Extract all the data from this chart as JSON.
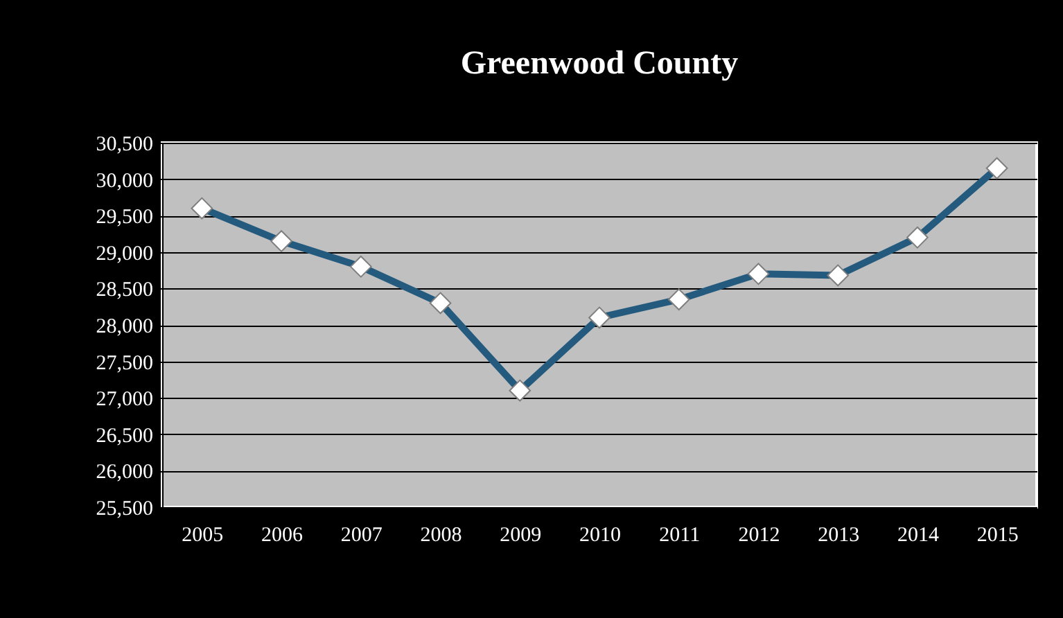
{
  "chart_data": {
    "type": "line",
    "title": "Greenwood County",
    "categories": [
      "2005",
      "2006",
      "2007",
      "2008",
      "2009",
      "2010",
      "2011",
      "2012",
      "2013",
      "2014",
      "2015"
    ],
    "series": [
      {
        "color": "#245a7e",
        "values": [
          29600,
          29150,
          28800,
          28300,
          27100,
          28100,
          28350,
          28700,
          28680,
          29200,
          30150
        ]
      }
    ],
    "ylim": [
      25500,
      30500
    ],
    "yticks": [
      {
        "value": 25500,
        "label": "25,500"
      },
      {
        "value": 26000,
        "label": "26,000"
      },
      {
        "value": 26500,
        "label": "26,500"
      },
      {
        "value": 27000,
        "label": "27,000"
      },
      {
        "value": 27500,
        "label": "27,500"
      },
      {
        "value": 28000,
        "label": "28,000"
      },
      {
        "value": 28500,
        "label": "28,500"
      },
      {
        "value": 29000,
        "label": "29,000"
      },
      {
        "value": 29500,
        "label": "29,500"
      },
      {
        "value": 30000,
        "label": "30,000"
      },
      {
        "value": 30500,
        "label": "30,500"
      }
    ],
    "grid": "y",
    "marker": "diamond",
    "line_style": "solid"
  }
}
